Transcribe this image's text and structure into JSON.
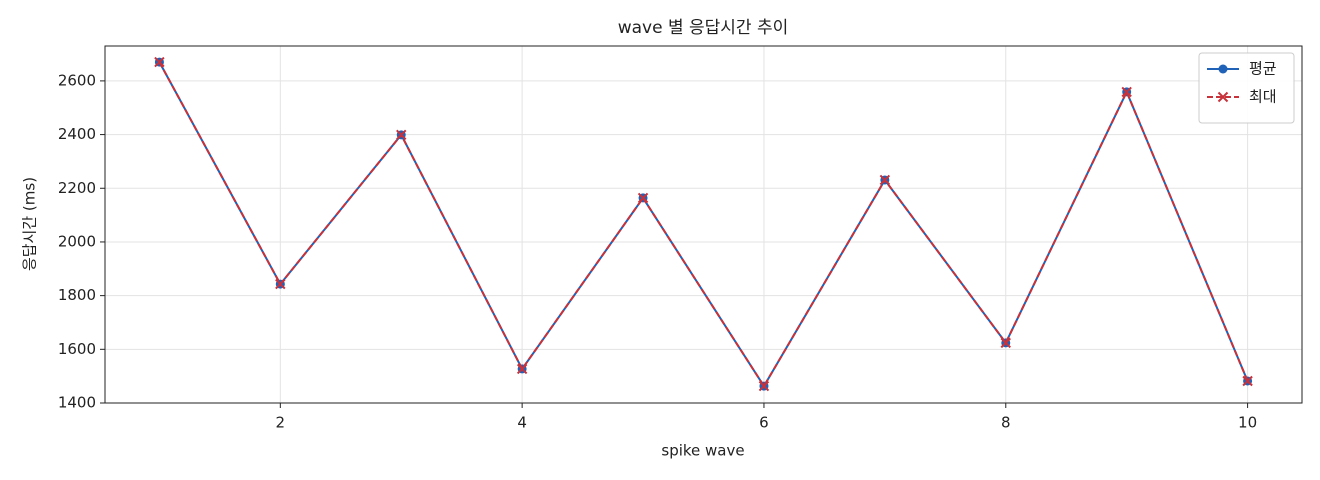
{
  "chart_data": {
    "type": "line",
    "title": "wave 별 응답시간 추이",
    "x_label": "spike wave",
    "y_label": "응답시간 (ms)",
    "x": [
      1,
      2,
      3,
      4,
      5,
      6,
      7,
      8,
      9,
      10
    ],
    "series": [
      {
        "name": "평균",
        "color": "#1f62b8",
        "marker": "o",
        "dash": false,
        "values": [
          2670,
          1843,
          2399,
          1527,
          2164,
          1463,
          2231,
          1624,
          2559,
          1482
        ]
      },
      {
        "name": "최대",
        "color": "#c8323a",
        "marker": "x",
        "dash": true,
        "values": [
          2670,
          1843,
          2399,
          1527,
          2164,
          1463,
          2231,
          1624,
          2559,
          1482
        ]
      }
    ],
    "xlim": [
      0.55,
      10.45
    ],
    "ylim": [
      1400,
      2730
    ],
    "xticks": [
      2,
      4,
      6,
      8,
      10
    ],
    "yticks": [
      1400,
      1600,
      1800,
      2000,
      2200,
      2400,
      2600
    ],
    "grid": true,
    "legend": "upper right"
  }
}
